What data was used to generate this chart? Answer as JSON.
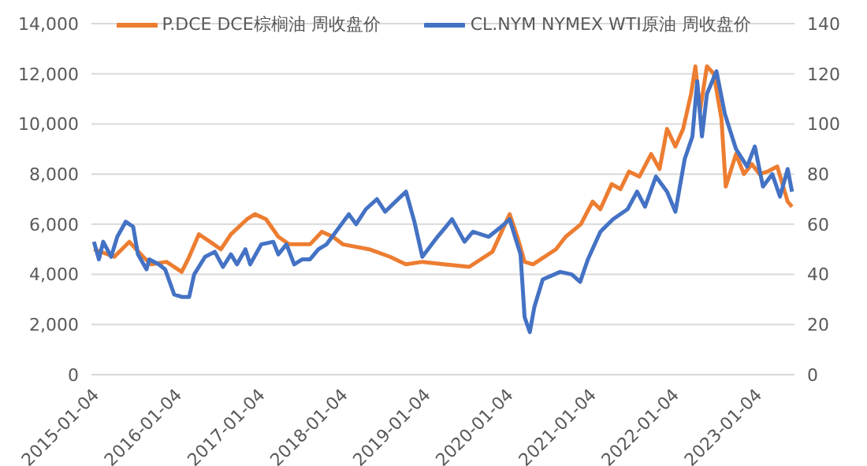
{
  "chart_data": {
    "type": "line",
    "xlim": [
      "2015-01-04",
      "2023-07-01"
    ],
    "xticks": [
      "2015-01-04",
      "2016-01-04",
      "2017-01-04",
      "2018-01-04",
      "2019-01-04",
      "2020-01-04",
      "2021-01-04",
      "2022-01-04",
      "2023-01-04"
    ],
    "ylim": [
      0,
      14000
    ],
    "yticks": [
      {
        "value": 0,
        "label": "0"
      },
      {
        "value": 2000,
        "label": "2,000"
      },
      {
        "value": 4000,
        "label": "4,000"
      },
      {
        "value": 6000,
        "label": "6,000"
      },
      {
        "value": 8000,
        "label": "8,000"
      },
      {
        "value": 10000,
        "label": "10,000"
      },
      {
        "value": 12000,
        "label": "12,000"
      },
      {
        "value": 14000,
        "label": "14,000"
      }
    ],
    "y2lim": [
      0,
      140
    ],
    "y2ticks": [
      0,
      20,
      40,
      60,
      80,
      100,
      120,
      140
    ],
    "grid": "y",
    "legend": "top",
    "marker": "none",
    "line_style": "solid",
    "series": [
      {
        "name": "P.DCE DCE棕榈油 周收盘价",
        "color": "#ed7d31",
        "x": [
          "2015-01-15",
          "2015-04-15",
          "2015-06-20",
          "2015-08-20",
          "2015-09-25",
          "2015-12-01",
          "2016-02-06",
          "2016-03-10",
          "2016-04-22",
          "2016-06-10",
          "2016-07-28",
          "2016-09-10",
          "2016-11-20",
          "2016-12-25",
          "2017-02-12",
          "2017-04-07",
          "2017-05-25",
          "2017-08-25",
          "2017-10-16",
          "2017-12-04",
          "2018-01-16",
          "2018-05-13",
          "2018-08-13",
          "2018-10-22",
          "2019-01-02",
          "2019-04-07",
          "2019-07-28",
          "2019-11-07",
          "2020-01-22",
          "2020-02-25",
          "2020-03-28",
          "2020-05-04",
          "2020-08-13",
          "2020-09-25",
          "2020-12-01",
          "2021-01-22",
          "2021-02-25",
          "2021-04-16",
          "2021-05-25",
          "2021-07-01",
          "2021-08-16",
          "2021-10-07",
          "2021-11-13",
          "2021-12-16",
          "2022-01-22",
          "2022-02-25",
          "2022-04-01",
          "2022-04-20",
          "2022-05-10",
          "2022-06-10",
          "2022-07-10",
          "2022-08-13",
          "2022-09-01",
          "2022-10-16",
          "2022-11-20",
          "2022-12-25",
          "2023-01-28",
          "2023-03-04",
          "2023-04-16",
          "2023-06-01",
          "2023-06-20"
        ],
        "values": [
          5000,
          4700,
          5300,
          4700,
          4400,
          4500,
          4100,
          4700,
          5600,
          5300,
          5000,
          5600,
          6200,
          6400,
          6200,
          5500,
          5200,
          5200,
          5700,
          5500,
          5200,
          5000,
          4700,
          4400,
          4500,
          4400,
          4300,
          4900,
          6400,
          5500,
          4500,
          4400,
          5000,
          5500,
          6000,
          6900,
          6600,
          7600,
          7400,
          8100,
          7900,
          8800,
          8200,
          9800,
          9100,
          9800,
          11200,
          12300,
          10500,
          12300,
          12000,
          10200,
          7500,
          8800,
          8000,
          8400,
          8000,
          8100,
          8300,
          6900,
          6700
        ]
      },
      {
        "name": "CL.NYM NYMEX WTI原油 周收盘价",
        "color": "#4472c4",
        "axis": "y2",
        "x": [
          "2015-01-15",
          "2015-02-06",
          "2015-02-25",
          "2015-04-01",
          "2015-04-28",
          "2015-06-04",
          "2015-07-07",
          "2015-07-28",
          "2015-09-04",
          "2015-09-16",
          "2015-10-28",
          "2015-11-25",
          "2016-01-04",
          "2016-02-06",
          "2016-03-10",
          "2016-04-01",
          "2016-05-19",
          "2016-07-01",
          "2016-08-06",
          "2016-09-10",
          "2016-10-07",
          "2016-11-13",
          "2016-12-04",
          "2017-01-22",
          "2017-03-16",
          "2017-04-07",
          "2017-05-13",
          "2017-06-16",
          "2017-07-22",
          "2017-08-25",
          "2017-10-01",
          "2017-11-06",
          "2017-12-25",
          "2018-02-12",
          "2018-03-16",
          "2018-04-28",
          "2018-06-16",
          "2018-07-22",
          "2018-08-25",
          "2018-10-22",
          "2018-11-28",
          "2019-01-02",
          "2019-03-10",
          "2019-04-16",
          "2019-05-13",
          "2019-07-07",
          "2019-08-13",
          "2019-10-22",
          "2019-12-16",
          "2020-01-22",
          "2020-02-25",
          "2020-03-10",
          "2020-03-28",
          "2020-04-20",
          "2020-05-10",
          "2020-06-16",
          "2020-09-01",
          "2020-10-22",
          "2020-11-28",
          "2021-01-01",
          "2021-02-25",
          "2021-04-22",
          "2021-06-25",
          "2021-08-06",
          "2021-09-10",
          "2021-10-28",
          "2021-12-16",
          "2022-01-22",
          "2022-03-04",
          "2022-04-07",
          "2022-04-28",
          "2022-05-19",
          "2022-06-10",
          "2022-07-22",
          "2022-08-28",
          "2022-10-16",
          "2022-12-04",
          "2023-01-07",
          "2023-02-12",
          "2023-03-25",
          "2023-04-28",
          "2023-06-01",
          "2023-06-20"
        ],
        "values": [
          53,
          46,
          53,
          47,
          55,
          61,
          59,
          48,
          42,
          46,
          44,
          42,
          32,
          31,
          31,
          40,
          47,
          49,
          43,
          48,
          44,
          50,
          44,
          52,
          53,
          48,
          52,
          44,
          46,
          46,
          50,
          52,
          58,
          64,
          60,
          66,
          70,
          65,
          68,
          73,
          61,
          47,
          55,
          59,
          62,
          53,
          57,
          55,
          59,
          62,
          52,
          48,
          23,
          17,
          27,
          38,
          41,
          40,
          37,
          46,
          57,
          62,
          66,
          73,
          67,
          79,
          73,
          65,
          86,
          95,
          117,
          95,
          112,
          121,
          104,
          90,
          83,
          91,
          75,
          80,
          71,
          82,
          73
        ]
      }
    ]
  }
}
